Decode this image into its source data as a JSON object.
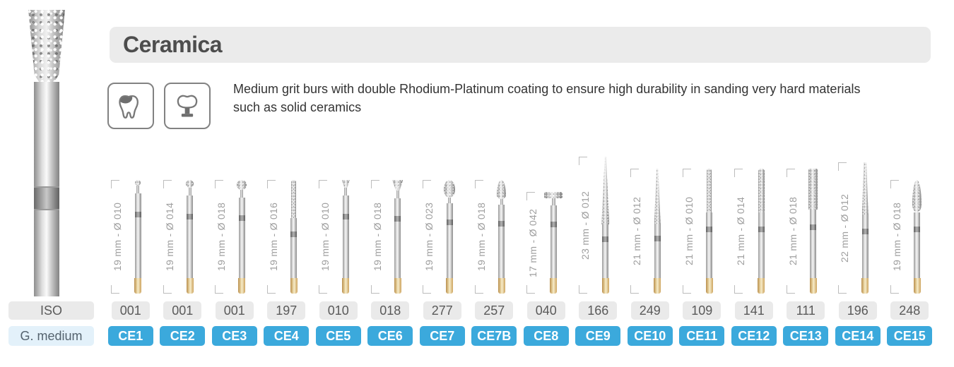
{
  "header": {
    "title": "Ceramica",
    "description": "Medium grit burs with double Rhodium-Platinum coating to ensure high durability in sanding very hard materials\nsuch as solid ceramics",
    "icon_names": [
      "tooth-icon",
      "crown-icon"
    ]
  },
  "rows": {
    "iso_label": "ISO",
    "grit_label": "G. medium"
  },
  "colors": {
    "accent_blue": "#3BA9DC",
    "chip_gray": "#EAEAEA",
    "banner_gray": "#EBEBEB",
    "grit_label_bg": "#E3F1FA",
    "grip_gold": "#DCBB80",
    "measure_text_gray": "#9E9E9E",
    "title_gray": "#4D4D4D"
  },
  "products": [
    {
      "code": "CE1",
      "iso": "001",
      "size": "19 mm - Ø 010",
      "mm": 19,
      "head": "round-small"
    },
    {
      "code": "CE2",
      "iso": "001",
      "size": "19 mm - Ø 014",
      "mm": 19,
      "head": "round-medium"
    },
    {
      "code": "CE3",
      "iso": "001",
      "size": "19 mm - Ø 018",
      "mm": 19,
      "head": "round-large"
    },
    {
      "code": "CE4",
      "iso": "197",
      "size": "19 mm - Ø 016",
      "mm": 19,
      "head": "slim-cylinder"
    },
    {
      "code": "CE5",
      "iso": "010",
      "size": "19 mm - Ø 010",
      "mm": 19,
      "head": "inverted-cone-small"
    },
    {
      "code": "CE6",
      "iso": "018",
      "size": "19 mm - Ø 018",
      "mm": 19,
      "head": "inverted-cone"
    },
    {
      "code": "CE7",
      "iso": "277",
      "size": "19 mm - Ø 023",
      "mm": 19,
      "head": "egg"
    },
    {
      "code": "CE7B",
      "iso": "257",
      "size": "19 mm - Ø 018",
      "mm": 19,
      "head": "bud"
    },
    {
      "code": "CE8",
      "iso": "040",
      "size": "17 mm - Ø 042",
      "mm": 17,
      "head": "wheel"
    },
    {
      "code": "CE9",
      "iso": "166",
      "size": "23 mm - Ø 012",
      "mm": 23,
      "head": "long-taper"
    },
    {
      "code": "CE10",
      "iso": "249",
      "size": "21 mm - Ø 012",
      "mm": 21,
      "head": "needle"
    },
    {
      "code": "CE11",
      "iso": "109",
      "size": "21 mm - Ø 010",
      "mm": 21,
      "head": "cylinder-thin"
    },
    {
      "code": "CE12",
      "iso": "141",
      "size": "21 mm - Ø 014",
      "mm": 21,
      "head": "cylinder"
    },
    {
      "code": "CE13",
      "iso": "111",
      "size": "21 mm - Ø 018",
      "mm": 21,
      "head": "cylinder-flat"
    },
    {
      "code": "CE14",
      "iso": "196",
      "size": "22 mm - Ø 012",
      "mm": 22,
      "head": "taper"
    },
    {
      "code": "CE15",
      "iso": "248",
      "size": "19 mm - Ø 018",
      "mm": 19,
      "head": "flame"
    }
  ]
}
